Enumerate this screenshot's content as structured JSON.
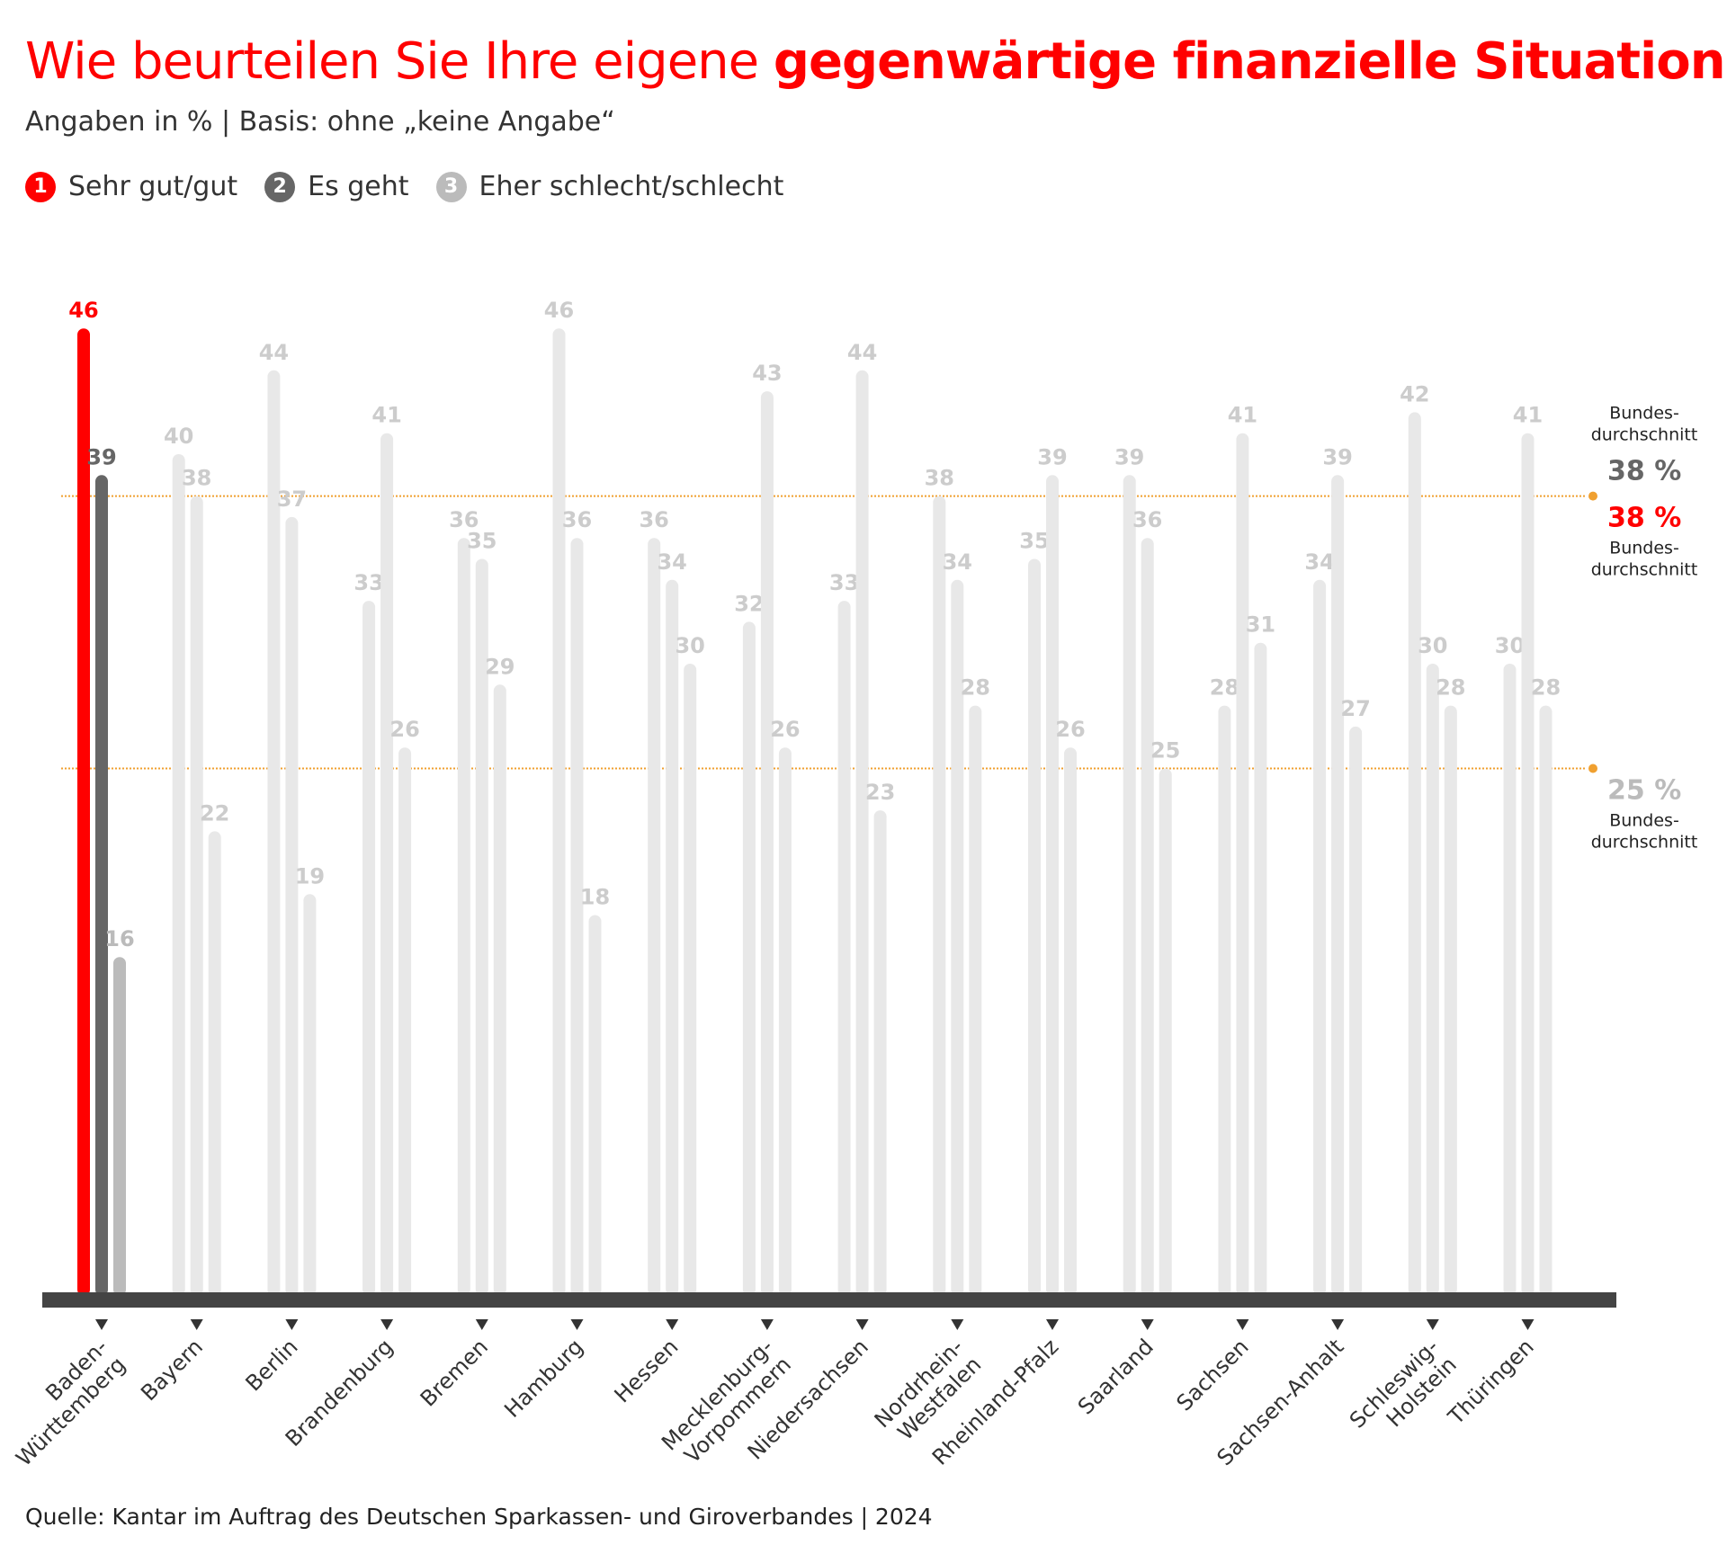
{
  "title": {
    "part1": "Wie beurteilen Sie Ihre eigene ",
    "part2": "gegenwärtige finanzielle Situation?"
  },
  "subtitle": "Angaben in % | Basis: ohne „keine Angabe“",
  "legend": [
    {
      "num": "1",
      "label": "Sehr gut/gut",
      "color": "#ff0000"
    },
    {
      "num": "2",
      "label": "Es geht",
      "color": "#666666"
    },
    {
      "num": "3",
      "label": "Eher schlecht/schlecht",
      "color": "#bbbbbb"
    }
  ],
  "source": "Quelle: Kantar im Auftrag des Deutschen Sparkassen- und Giroverbandes | 2024",
  "colors": {
    "highlight": [
      "#ff0000",
      "#666666",
      "#bbbbbb"
    ],
    "muted_bar": "#e8e8e8",
    "muted_label": "#cccccc",
    "axis": "#444444",
    "reference_line": "#f0a030"
  },
  "chart_data": {
    "type": "bar",
    "categories": [
      "Baden-Württemberg",
      "Bayern",
      "Berlin",
      "Brandenburg",
      "Bremen",
      "Hamburg",
      "Hessen",
      "Mecklenburg-Vorpommern",
      "Niedersachsen",
      "Nordrhein-Westfalen",
      "Rheinland-Pfalz",
      "Saarland",
      "Sachsen",
      "Sachsen-Anhalt",
      "Schleswig-Holstein",
      "Thüringen"
    ],
    "category_labels": [
      [
        "Baden-",
        "Württemberg"
      ],
      [
        "Bayern"
      ],
      [
        "Berlin"
      ],
      [
        "Brandenburg"
      ],
      [
        "Bremen"
      ],
      [
        "Hamburg"
      ],
      [
        "Hessen"
      ],
      [
        "Mecklenburg-",
        "Vorpommern"
      ],
      [
        "Niedersachsen"
      ],
      [
        "Nordrhein-",
        "Westfalen"
      ],
      [
        "Rheinland-Pfalz"
      ],
      [
        "Saarland"
      ],
      [
        "Sachsen"
      ],
      [
        "Sachsen-Anhalt"
      ],
      [
        "Schleswig-",
        "Holstein"
      ],
      [
        "Thüringen"
      ]
    ],
    "series": [
      {
        "name": "Sehr gut/gut",
        "values": [
          46,
          40,
          44,
          33,
          36,
          46,
          36,
          32,
          33,
          38,
          35,
          39,
          28,
          34,
          42,
          30
        ]
      },
      {
        "name": "Es geht",
        "values": [
          39,
          38,
          37,
          41,
          35,
          36,
          34,
          43,
          44,
          34,
          39,
          36,
          41,
          39,
          30,
          41
        ]
      },
      {
        "name": "Eher schlecht/schlecht",
        "values": [
          16,
          22,
          19,
          26,
          29,
          18,
          30,
          26,
          23,
          28,
          26,
          25,
          31,
          27,
          28,
          28
        ]
      }
    ],
    "highlighted_category": "Baden-Württemberg",
    "ylim": [
      0,
      46
    ],
    "reference_lines": [
      {
        "value": 38,
        "label_value": "38 %",
        "caption": "Bundes-\ndurchschnitt",
        "color": "#666666",
        "caption_position": "above"
      },
      {
        "value": 38,
        "label_value": "38 %",
        "caption": "Bundes-\ndurchschnitt",
        "color": "#ff0000",
        "caption_position": "below"
      },
      {
        "value": 25,
        "label_value": "25 %",
        "caption": "Bundes-\ndurchschnitt",
        "color": "#bbbbbb",
        "caption_position": "below"
      }
    ]
  }
}
